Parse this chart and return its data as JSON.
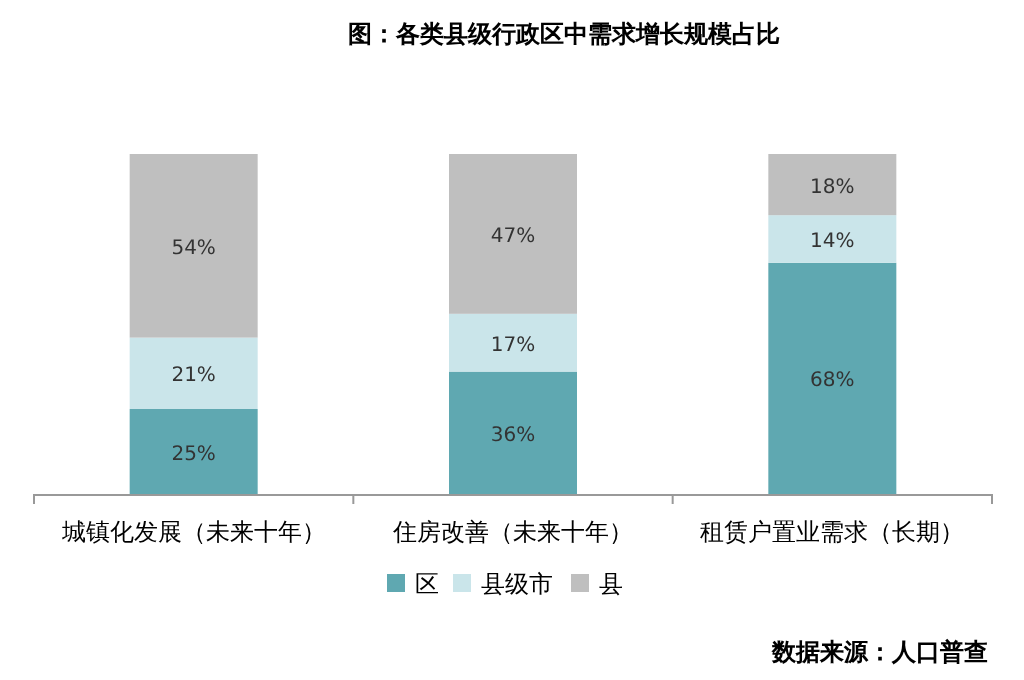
{
  "chart_data": {
    "type": "bar",
    "stacked": true,
    "title": "图：各类县级行政区中需求增长规模占比",
    "categories": [
      "城镇化发展（未来十年）",
      "住房改善（未来十年）",
      "租赁户置业需求（长期）"
    ],
    "series": [
      {
        "name": "区",
        "color": "#5fa8b1",
        "values": [
          25,
          36,
          68
        ],
        "value_labels": [
          "25%",
          "36%",
          "68%"
        ]
      },
      {
        "name": "县级市",
        "color": "#cae5ea",
        "values": [
          21,
          17,
          14
        ],
        "value_labels": [
          "21%",
          "17%",
          "14%"
        ]
      },
      {
        "name": "县",
        "color": "#bfbfbf",
        "values": [
          54,
          47,
          18
        ],
        "value_labels": [
          "54%",
          "47%",
          "18%"
        ]
      }
    ],
    "legend": "bottom",
    "grid": false,
    "annotations": [
      "数据来源：人口普查"
    ]
  }
}
